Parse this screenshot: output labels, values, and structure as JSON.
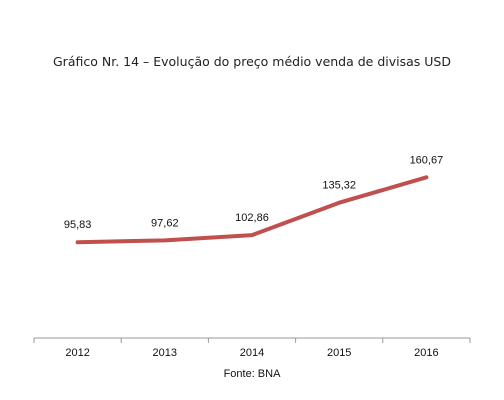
{
  "chart_data": {
    "type": "line",
    "title": "Gráfico Nr. 14 – Evolução do preço médio venda de divisas USD",
    "categories": [
      "2012",
      "2013",
      "2014",
      "2015",
      "2016"
    ],
    "series": [
      {
        "values": [
          95.83,
          97.62,
          102.86,
          135.32,
          160.67
        ],
        "labels": [
          "95,83",
          "97,62",
          "102,86",
          "135,32",
          "160,67"
        ],
        "color": "#c0504d"
      }
    ],
    "ylim": [
      0,
      180
    ],
    "grid": false,
    "legend": "none",
    "source": "Fonte: BNA"
  }
}
